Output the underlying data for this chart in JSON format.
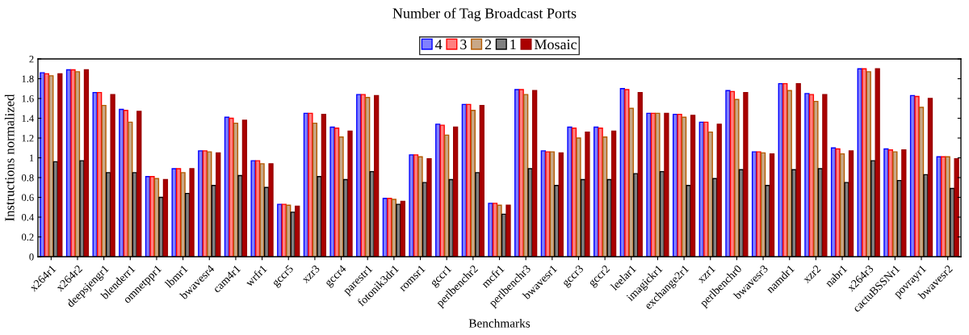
{
  "chart_data": {
    "type": "bar",
    "title": "Number of Tag Broadcast Ports",
    "xlabel": "Benchmarks",
    "ylabel": "Instructions normalized",
    "categories": [
      "x264r1",
      "x264r2",
      "deepsjengr1",
      "blenderr1",
      "omnetppr1",
      "lbmr1",
      "bwavesr4",
      "cam4r1",
      "wrfr1",
      "gccr5",
      "xzr3",
      "gccr4",
      "parestr1",
      "fotonik3dr1",
      "romsr1",
      "gccr1",
      "perlbenchr2",
      "mcfr1",
      "perlbenchr3",
      "bwavesr1",
      "gccr3",
      "gccr2",
      "leelar1",
      "imagickr1",
      "exchange2r1",
      "xzr1",
      "perlbenchr0",
      "bwavesr3",
      "namdr1",
      "xzr2",
      "nabr1",
      "x264r3",
      "cactuBSSNr1",
      "povrayr1",
      "bwavesr2"
    ],
    "series": [
      {
        "name": "4",
        "color": "#8080ff",
        "values": [
          1.86,
          1.89,
          1.66,
          1.49,
          0.81,
          0.89,
          1.07,
          1.41,
          0.97,
          0.53,
          1.45,
          1.31,
          1.64,
          0.59,
          1.03,
          1.34,
          1.54,
          0.54,
          1.69,
          1.07,
          1.31,
          1.31,
          1.7,
          1.45,
          1.44,
          1.36,
          1.68,
          1.06,
          1.75,
          1.65,
          1.1,
          1.9,
          1.09,
          1.63,
          1.01
        ]
      },
      {
        "name": "3",
        "color": "#ff8080",
        "values": [
          1.85,
          1.89,
          1.66,
          1.48,
          0.81,
          0.89,
          1.07,
          1.4,
          0.97,
          0.53,
          1.45,
          1.3,
          1.64,
          0.59,
          1.03,
          1.33,
          1.54,
          0.54,
          1.69,
          1.06,
          1.3,
          1.3,
          1.69,
          1.45,
          1.44,
          1.36,
          1.67,
          1.06,
          1.75,
          1.64,
          1.09,
          1.9,
          1.08,
          1.62,
          1.01
        ]
      },
      {
        "name": "2",
        "color": "#c8a888",
        "values": [
          1.83,
          1.87,
          1.53,
          1.36,
          0.79,
          0.85,
          1.06,
          1.35,
          0.94,
          0.52,
          1.35,
          1.21,
          1.61,
          0.58,
          1.01,
          1.23,
          1.48,
          0.52,
          1.64,
          1.06,
          1.2,
          1.21,
          1.5,
          1.45,
          1.41,
          1.26,
          1.59,
          1.05,
          1.68,
          1.57,
          1.04,
          1.87,
          1.06,
          1.51,
          1.01
        ]
      },
      {
        "name": "1",
        "color": "#808080",
        "values": [
          0.96,
          0.97,
          0.85,
          0.85,
          0.6,
          0.64,
          0.72,
          0.82,
          0.7,
          0.45,
          0.81,
          0.78,
          0.86,
          0.53,
          0.75,
          0.78,
          0.85,
          0.43,
          0.89,
          0.72,
          0.78,
          0.78,
          0.84,
          0.86,
          0.72,
          0.79,
          0.88,
          0.72,
          0.88,
          0.89,
          0.75,
          0.97,
          0.77,
          0.83,
          0.69
        ]
      },
      {
        "name": "Mosaic",
        "color": "#aa0000",
        "values": [
          1.85,
          1.89,
          1.64,
          1.47,
          0.78,
          0.89,
          1.05,
          1.38,
          0.94,
          0.51,
          1.44,
          1.27,
          1.63,
          0.56,
          0.99,
          1.31,
          1.53,
          0.52,
          1.68,
          1.05,
          1.26,
          1.27,
          1.66,
          1.45,
          1.43,
          1.34,
          1.66,
          1.04,
          1.75,
          1.64,
          1.07,
          1.9,
          1.08,
          1.6,
          0.99
        ]
      }
    ],
    "ylim": [
      0,
      2
    ],
    "yticks": [
      0,
      0.2,
      0.4,
      0.6,
      0.8,
      1,
      1.2,
      1.4,
      1.6,
      1.8,
      2
    ],
    "legend": "top",
    "grid": false
  }
}
